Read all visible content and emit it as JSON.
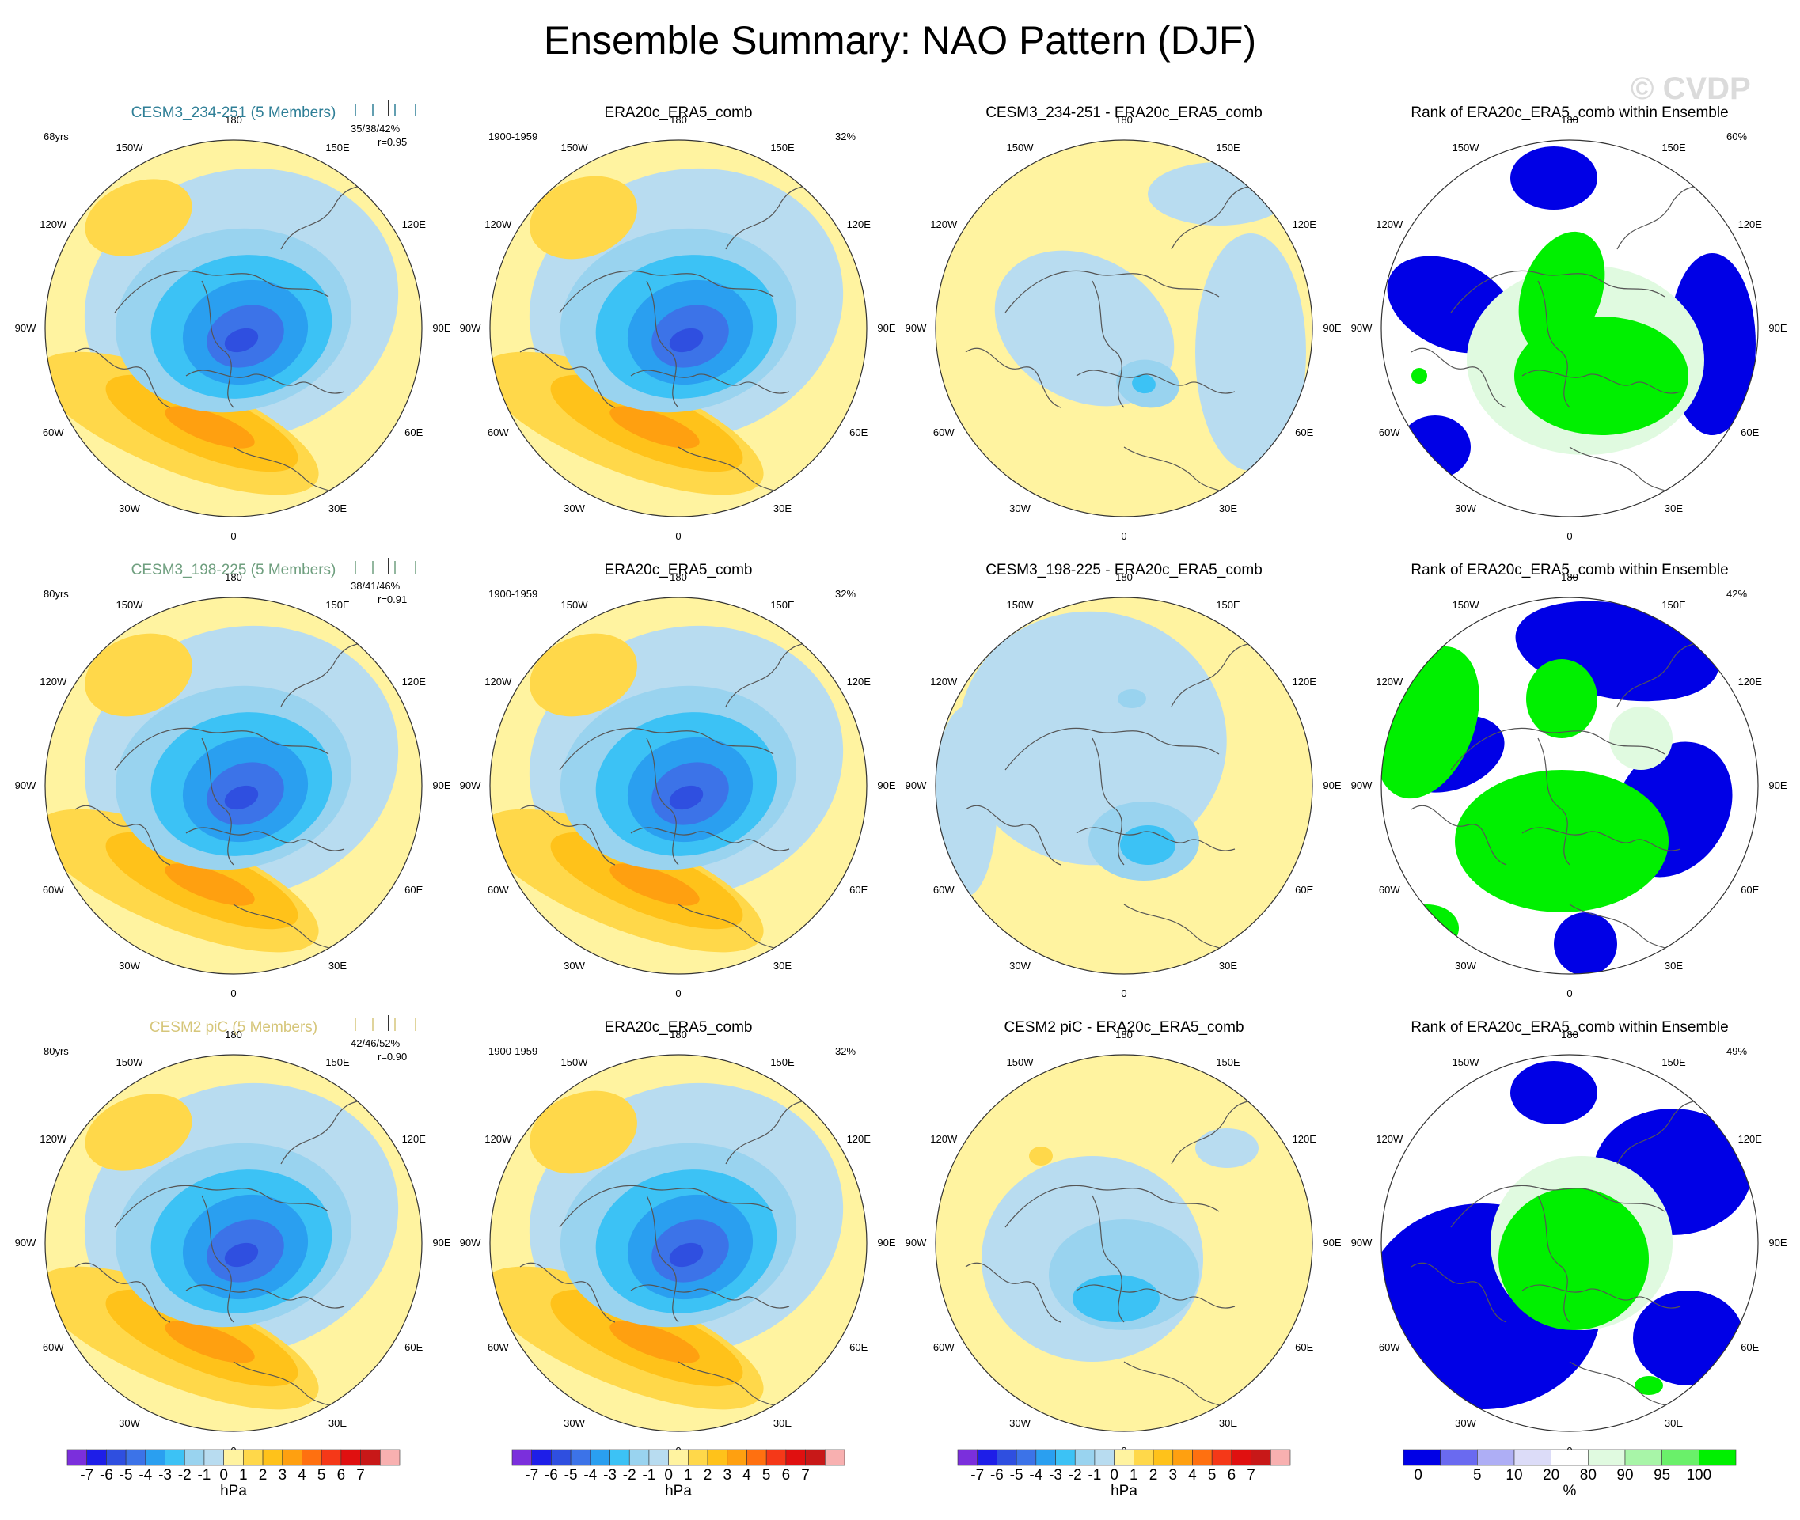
{
  "page_title": "Ensemble Summary: NAO Pattern (DJF)",
  "watermark": "© CVDP",
  "colors": {
    "model_1": "#2f7f97",
    "model_2": "#6f9f7f",
    "model_3": "#d6c67a",
    "land_lines": "#555555"
  },
  "anomaly_colorbar": {
    "unit": "hPa",
    "tick_labels": [
      "-7",
      "-6",
      "-5",
      "-4",
      "-3",
      "-2",
      "-1",
      "0",
      "1",
      "2",
      "3",
      "4",
      "5",
      "6",
      "7"
    ],
    "colors": [
      "#7b2fdc",
      "#1e1ee8",
      "#2f4fe0",
      "#3c73e8",
      "#2a9ff0",
      "#3cc2f5",
      "#99d3ef",
      "#b8dcf0",
      "#fff3a0",
      "#ffd84a",
      "#ffc21a",
      "#ffa010",
      "#ff7010",
      "#f53818",
      "#e01010",
      "#c81818",
      "#f8b0b0"
    ]
  },
  "rank_colorbar": {
    "unit": "%",
    "tick_labels": [
      "0",
      "5",
      "10",
      "20",
      "80",
      "90",
      "95",
      "100"
    ],
    "colors": [
      "#0000e6",
      "#6a6af0",
      "#aeaef5",
      "#dcdcf8",
      "#ffffff",
      "#e0fae0",
      "#a8f5a8",
      "#6af06a",
      "#00f000"
    ]
  },
  "rows": [
    {
      "model": "CESM3_234-251 (5 Members)",
      "years": "68yrs",
      "stats": "35/38/42%",
      "correlation": "r=0.95",
      "obs_title": "ERA20c_ERA5_comb",
      "obs_period": "1900-1959",
      "obs_pct": "32%",
      "diff_title": "CESM3_234-251 - ERA20c_ERA5_comb",
      "rank_title": "Rank of ERA20c_ERA5_comb within Ensemble",
      "rank_pct": "60%"
    },
    {
      "model": "CESM3_198-225 (5 Members)",
      "years": "80yrs",
      "stats": "38/41/46%",
      "correlation": "r=0.91",
      "obs_title": "ERA20c_ERA5_comb",
      "obs_period": "1900-1959",
      "obs_pct": "32%",
      "diff_title": "CESM3_198-225 - ERA20c_ERA5_comb",
      "rank_title": "Rank of ERA20c_ERA5_comb within Ensemble",
      "rank_pct": "42%"
    },
    {
      "model": "CESM2 piC (5 Members)",
      "years": "80yrs",
      "stats": "42/46/52%",
      "correlation": "r=0.90",
      "obs_title": "ERA20c_ERA5_comb",
      "obs_period": "1900-1959",
      "obs_pct": "32%",
      "diff_title": "CESM2 piC - ERA20c_ERA5_comb",
      "rank_title": "Rank of ERA20c_ERA5_comb within Ensemble",
      "rank_pct": "49%"
    }
  ],
  "longitude_labels": [
    "180",
    "150E",
    "120E",
    "90E",
    "60E",
    "30E",
    "0",
    "30W",
    "60W",
    "90W",
    "120W",
    "150W"
  ],
  "chart_data": {
    "type": "heatmap",
    "title": "Ensemble Summary: NAO Pattern (DJF)",
    "projection": "polar stereographic, Northern Hemisphere",
    "layout": "3 rows x 4 columns",
    "columns": [
      "ensemble mean pattern",
      "observed pattern",
      "difference",
      "rank of observations within ensemble"
    ],
    "anomaly_levels_hPa": [
      -7,
      -6,
      -5,
      -4,
      -3,
      -2,
      -1,
      0,
      1,
      2,
      3,
      4,
      5,
      6,
      7
    ],
    "rank_levels_pct": [
      0,
      5,
      10,
      20,
      80,
      90,
      95,
      100
    ],
    "panels": [
      {
        "row": 1,
        "model": "CESM3_234-251",
        "members": 5,
        "years": 68,
        "explained_variance_pct": [
          35,
          38,
          42
        ],
        "pattern_correlation": 0.95,
        "min_hPa": -5.5,
        "max_hPa": 3.5,
        "obs_explained_variance_pct": 32,
        "rank_area_pct": 60
      },
      {
        "row": 2,
        "model": "CESM3_198-225",
        "members": 5,
        "years": 80,
        "explained_variance_pct": [
          38,
          41,
          46
        ],
        "pattern_correlation": 0.91,
        "min_hPa": -5.5,
        "max_hPa": 3.0,
        "obs_explained_variance_pct": 32,
        "rank_area_pct": 42
      },
      {
        "row": 3,
        "model": "CESM2 piC",
        "members": 5,
        "years": 80,
        "explained_variance_pct": [
          42,
          46,
          52
        ],
        "pattern_correlation": 0.9,
        "min_hPa": -6.0,
        "max_hPa": 3.0,
        "obs_explained_variance_pct": 32,
        "rank_area_pct": 49
      }
    ]
  }
}
